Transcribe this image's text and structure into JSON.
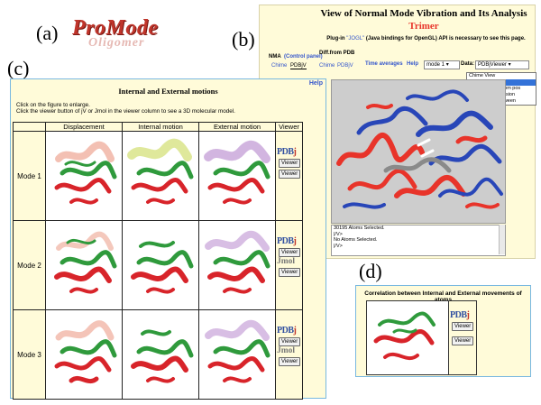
{
  "labels": {
    "a": "(a)",
    "b": "(b)",
    "c": "(c)",
    "d": "(d)"
  },
  "logo": {
    "main": "ProMode",
    "sub": "Oligomer"
  },
  "panel_b": {
    "title": "View of Normal Mode Vibration and Its Analysis",
    "subtitle": "Trimer",
    "plugin_prefix": "Plug-in",
    "plugin_link": "\"JOGL\"",
    "plugin_suffix": "(Java bindings for OpenGL) API is necessary to see this page.",
    "nav": {
      "nma": "NMA",
      "control_panel": "(Control panel)",
      "diff": "Diff.from PDB",
      "time_avg": "Time averages",
      "help": "Help",
      "chime": "Chime",
      "pdbjv": "PDBjV",
      "chime2": "Chime",
      "pdbjv2": "PDBjV",
      "mode_select": "mode 1",
      "data_label": "Data:",
      "data_select": "PDBjViewer"
    },
    "dropdown_options": [
      {
        "label": "Chime View",
        "selected": false
      },
      {
        "label": "PDBjViewer",
        "selected": true
      },
      {
        "label": "Fluctuation of atom pos",
        "selected": false
      },
      {
        "label": "Fluctuation of torsion",
        "selected": false
      },
      {
        "label": "Correlations between",
        "selected": false
      }
    ],
    "console_lines": [
      "30195 Atoms Selected.",
      "|/V>",
      "No Atoms Selected.",
      "|/V>"
    ]
  },
  "panel_c": {
    "help": "Help",
    "title": "Internal and External motions",
    "note_line1": "Click on the figure to enlarge.",
    "note_line2": "Click the viewer button of jV or Jmol in the viewer column to see a 3D molecular model.",
    "columns": [
      "Displacement",
      "Internal motion",
      "External motion",
      "Viewer"
    ],
    "rows": [
      {
        "label": "Mode 1",
        "pdb": "PDB",
        "jmol": "",
        "buttons": [
          "Viewer",
          "Viewer"
        ]
      },
      {
        "label": "Mode 2",
        "pdb": "PDB",
        "jmol": "Jmol",
        "buttons": [
          "Viewer",
          "Viewer"
        ]
      },
      {
        "label": "Mode 3",
        "pdb": "PDB",
        "jmol": "Jmol",
        "buttons": [
          "Viewer",
          "Viewer"
        ]
      }
    ],
    "colors": {
      "helix": "#d8242a",
      "sheet": "#2f9a3c",
      "trace_internal": "#d9e48a",
      "trace_external": "#c7a3d8"
    }
  },
  "panel_d": {
    "title": "Correlation between Internal and External movements of atoms",
    "pdb": "PDB",
    "buttons": [
      "Viewer",
      "Viewer"
    ]
  },
  "colors": {
    "accent_red": "#e8342a",
    "panel_bg": "#fffbd9",
    "panel_border": "#78b8e0",
    "link": "#3355cc"
  }
}
